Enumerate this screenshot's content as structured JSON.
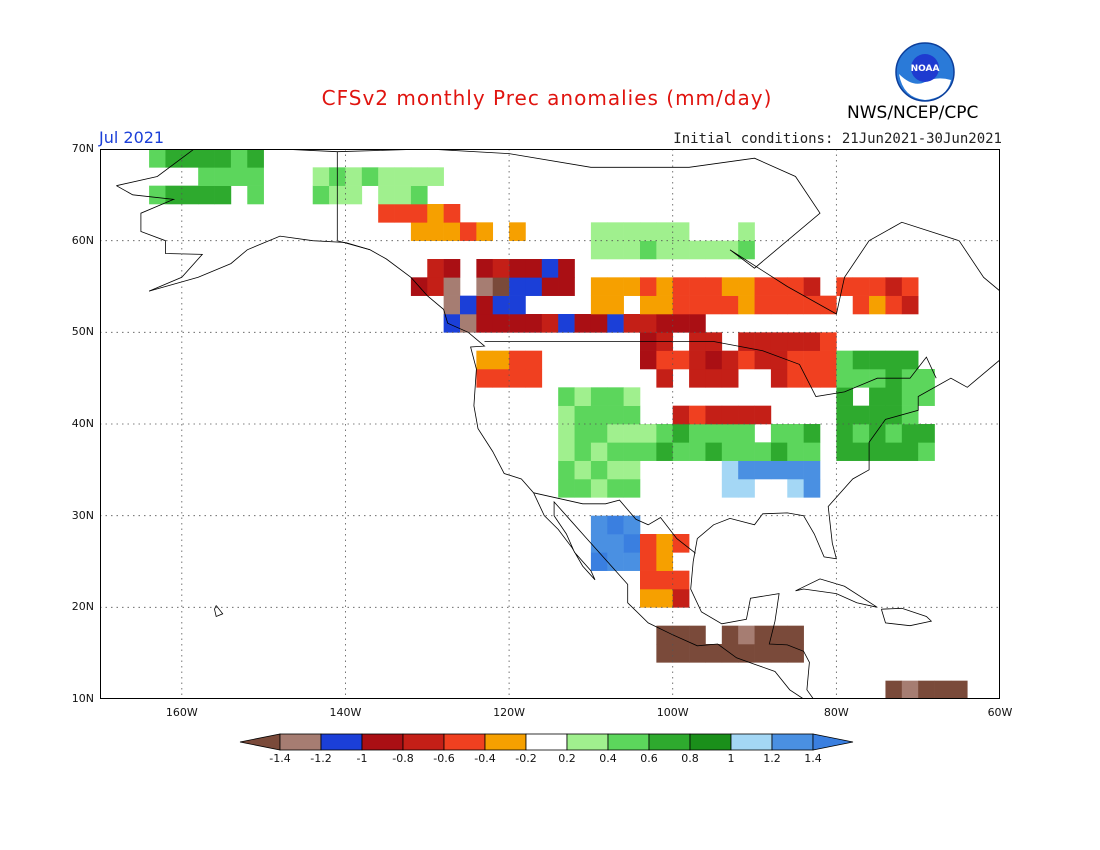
{
  "header": {
    "title": "CFSv2 monthly Prec anomalies (mm/day)",
    "month": "Jul 2021",
    "initial_conditions": "Initial conditions: 21Jun2021-30Jun2021",
    "agency": "NWS/NCEP/CPC",
    "logo_text": "NOAA"
  },
  "axes": {
    "lat_labels": [
      "70N",
      "60N",
      "50N",
      "40N",
      "30N",
      "20N",
      "10N"
    ],
    "lon_labels": [
      "160W",
      "140W",
      "120W",
      "100W",
      "80W",
      "60W"
    ],
    "lat_range": [
      10,
      70
    ],
    "lon_range": [
      -170,
      -60
    ]
  },
  "legend": {
    "tick_labels": [
      "-1.4",
      "-1.2",
      "-1",
      "-0.8",
      "-0.6",
      "-0.4",
      "-0.2",
      "0.2",
      "0.4",
      "0.6",
      "0.8",
      "1",
      "1.2",
      "1.4"
    ],
    "colors": [
      "#7a4a3a",
      "#a67d72",
      "#1b3fd8",
      "#aa0f14",
      "#c41f17",
      "#f04020",
      "#f6a000",
      "#ffffff",
      "#a0f08e",
      "#5cd65c",
      "#2eaa2e",
      "#1a8f1a",
      "#a4d7f5",
      "#4a90e2",
      "#3a7fe0"
    ]
  },
  "chart_data": {
    "type": "heatmap",
    "title": "CFSv2 monthly Prec anomalies (mm/day)",
    "units": "mm/day",
    "valid": "Jul 2021",
    "levels": [
      -1.4,
      -1.2,
      -1,
      -0.8,
      -0.6,
      -0.4,
      -0.2,
      0.2,
      0.4,
      0.6,
      0.8,
      1,
      1.2,
      1.4
    ],
    "regions": [
      {
        "lon": [
          -165,
          -150
        ],
        "lat": [
          64,
          69
        ],
        "value": 0.5
      },
      {
        "lon": [
          -145,
          -128
        ],
        "lat": [
          63,
          67
        ],
        "value": 0.3
      },
      {
        "lon": [
          -137,
          -127
        ],
        "lat": [
          61,
          64
        ],
        "value": -0.5
      },
      {
        "lon": [
          -133,
          -118
        ],
        "lat": [
          59,
          62
        ],
        "value": -0.3
      },
      {
        "lon": [
          -132,
          -112
        ],
        "lat": [
          53,
          58
        ],
        "value": -0.9
      },
      {
        "lon": [
          -128,
          -118
        ],
        "lat": [
          50,
          55
        ],
        "value": -1.3
      },
      {
        "lon": [
          -126,
          -120
        ],
        "lat": [
          51,
          53
        ],
        "value": -1.1
      },
      {
        "lon": [
          -125,
          -95
        ],
        "lat": [
          49,
          52
        ],
        "value": -0.9
      },
      {
        "lon": [
          -125,
          -117
        ],
        "lat": [
          43,
          48
        ],
        "value": -0.5
      },
      {
        "lon": [
          -110,
          -70
        ],
        "lat": [
          51,
          55
        ],
        "value": -0.4
      },
      {
        "lon": [
          -105,
          -80
        ],
        "lat": [
          43,
          50
        ],
        "value": -0.7
      },
      {
        "lon": [
          -100,
          -88
        ],
        "lat": [
          39,
          42
        ],
        "value": -0.7
      },
      {
        "lon": [
          -90,
          -70
        ],
        "lat": [
          52,
          56
        ],
        "value": -0.5
      },
      {
        "lon": [
          -110,
          -90
        ],
        "lat": [
          58,
          62
        ],
        "value": 0.3
      },
      {
        "lon": [
          -115,
          -105
        ],
        "lat": [
          32,
          43
        ],
        "value": 0.4
      },
      {
        "lon": [
          -105,
          -75
        ],
        "lat": [
          35,
          40
        ],
        "value": 0.5
      },
      {
        "lon": [
          -95,
          -82
        ],
        "lat": [
          31,
          35
        ],
        "value": 1.2
      },
      {
        "lon": [
          -80,
          -68
        ],
        "lat": [
          36,
          47
        ],
        "value": 0.6
      },
      {
        "lon": [
          -110,
          -104
        ],
        "lat": [
          23,
          30
        ],
        "value": 1.3
      },
      {
        "lon": [
          -104,
          -98
        ],
        "lat": [
          19,
          28
        ],
        "value": -0.5
      },
      {
        "lon": [
          -102,
          -85
        ],
        "lat": [
          13,
          17
        ],
        "value": -1.5
      },
      {
        "lon": [
          -75,
          -65
        ],
        "lat": [
          10,
          12
        ],
        "value": -1.5
      }
    ]
  }
}
